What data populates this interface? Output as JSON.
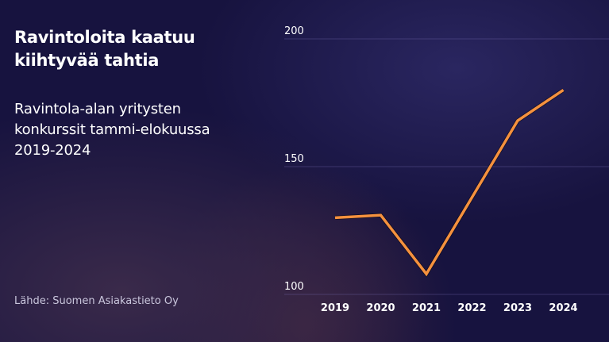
{
  "header": {
    "title": "Ravintoloita kaatuu kiihtyvää tahtia",
    "subtitle": "Ravintola-alan yritysten konkurssit tammi-elokuussa 2019-2024",
    "source": "Lähde: Suomen Asiakastieto Oy"
  },
  "chart_data": {
    "type": "line",
    "title": "Ravintoloita kaatuu kiihtyvää tahtia",
    "subtitle": "Ravintola-alan yritysten konkurssit tammi-elokuussa 2019-2024",
    "categories": [
      "2019",
      "2020",
      "2021",
      "2022",
      "2023",
      "2024"
    ],
    "series": [
      {
        "values": [
          130,
          131,
          108,
          138,
          168,
          180
        ],
        "color": "#f5913e"
      }
    ],
    "yticks": [
      "100",
      "150",
      "200"
    ],
    "ylim": [
      100,
      200
    ],
    "grid": true,
    "legend": "none"
  }
}
